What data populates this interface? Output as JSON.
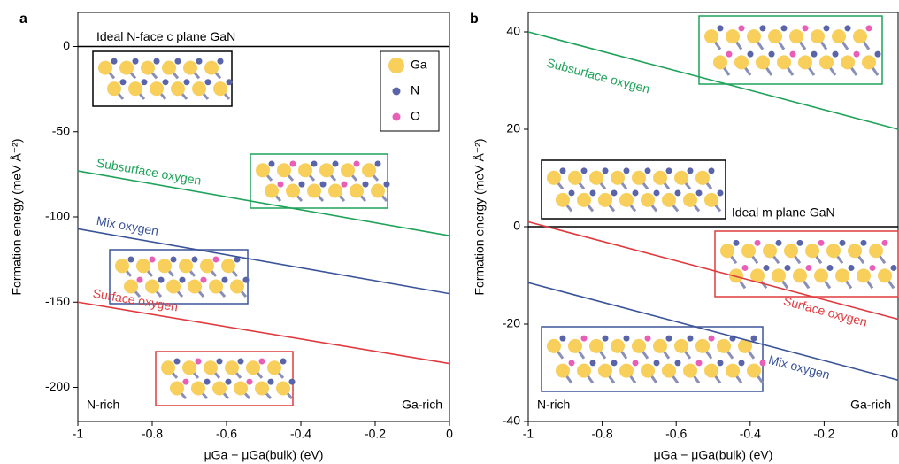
{
  "chart_data": [
    {
      "type": "line",
      "panel_label": "a",
      "x_label": "μGa − μGa(bulk) (eV)",
      "y_label": "Formation energy (meV Å⁻²)",
      "x": [
        -1,
        0
      ],
      "xlim": [
        -1,
        0
      ],
      "xticks": [
        -1,
        -0.8,
        -0.6,
        -0.4,
        -0.2,
        0
      ],
      "ylim": [
        -220,
        20
      ],
      "yticks": [
        -200,
        -150,
        -100,
        -50,
        0
      ],
      "left_label": "N-rich",
      "right_label": "Ga-rich",
      "legend_items": [
        {
          "name": "Ga",
          "color": "#f7cf5a"
        },
        {
          "name": "N",
          "color": "#5a64a8"
        },
        {
          "name": "O",
          "color": "#e85fb8"
        }
      ],
      "series": [
        {
          "name": "Ideal N-face c plane GaN",
          "color": "#000000",
          "values": [
            0,
            0
          ]
        },
        {
          "name": "Subsurface oxygen",
          "color": "#1fa25a",
          "values": [
            -73,
            -111
          ]
        },
        {
          "name": "Mix oxygen",
          "color": "#3b5499",
          "values": [
            -107,
            -145
          ]
        },
        {
          "name": "Surface oxygen",
          "color": "#e03a3e",
          "values": [
            -150,
            -186
          ]
        }
      ]
    },
    {
      "type": "line",
      "panel_label": "b",
      "x_label": "μGa − μGa(bulk) (eV)",
      "y_label": "Formation energy (meV Å⁻²)",
      "x": [
        -1,
        0
      ],
      "xlim": [
        -1,
        0
      ],
      "xticks": [
        -1,
        -0.8,
        -0.6,
        -0.4,
        -0.2,
        0
      ],
      "ylim": [
        -40,
        44
      ],
      "yticks": [
        -40,
        -20,
        0,
        20,
        40
      ],
      "left_label": "N-rich",
      "right_label": "Ga-rich",
      "series": [
        {
          "name": "Ideal m plane GaN",
          "color": "#000000",
          "values": [
            0,
            0
          ]
        },
        {
          "name": "Subsurface oxygen",
          "color": "#1fa25a",
          "values": [
            40,
            20
          ]
        },
        {
          "name": "Surface oxygen",
          "color": "#e03a3e",
          "values": [
            1,
            -19
          ]
        },
        {
          "name": "Mix oxygen",
          "color": "#3b5499",
          "values": [
            -11.5,
            -31.5
          ]
        }
      ]
    }
  ]
}
